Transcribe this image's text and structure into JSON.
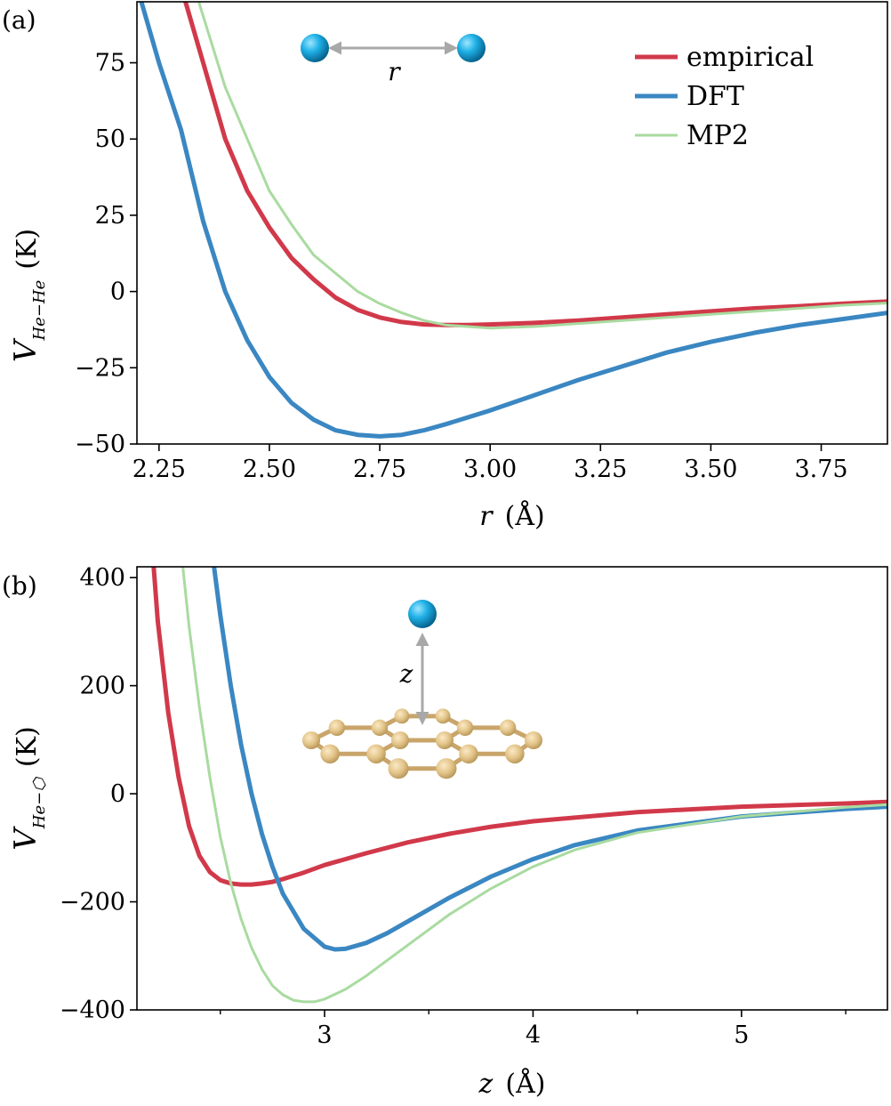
{
  "chart_data": [
    {
      "panel": "(a)",
      "type": "line",
      "xlabel_var": "r",
      "xlabel_unit": "(Å)",
      "ylabel_var": "V",
      "ylabel_sub": "He−He",
      "ylabel_unit": "(K)",
      "xlim": [
        2.2,
        3.9
      ],
      "ylim": [
        -50,
        95
      ],
      "xticks": [
        2.25,
        2.5,
        2.75,
        3.0,
        3.25,
        3.5,
        3.75
      ],
      "xtick_labels": [
        "2.25",
        "2.50",
        "2.75",
        "3.00",
        "3.25",
        "3.50",
        "3.75"
      ],
      "yticks": [
        -50,
        -25,
        0,
        25,
        50,
        75
      ],
      "ytick_labels": [
        "−50",
        "−25",
        "0",
        "25",
        "50",
        "75"
      ],
      "legend_position": "top-right",
      "inset": {
        "type": "dimer",
        "label": "r"
      },
      "series": [
        {
          "name": "empirical",
          "color": "#d1394a",
          "width": 5,
          "x": [
            2.31,
            2.35,
            2.4,
            2.45,
            2.5,
            2.55,
            2.6,
            2.65,
            2.7,
            2.75,
            2.8,
            2.85,
            2.9,
            2.95,
            3.0,
            3.1,
            3.2,
            3.3,
            3.4,
            3.5,
            3.6,
            3.7,
            3.8,
            3.9
          ],
          "y": [
            95,
            75,
            50,
            33,
            21,
            11,
            4,
            -2,
            -6,
            -8.5,
            -10,
            -10.8,
            -11,
            -11,
            -10.8,
            -10.3,
            -9.5,
            -8.5,
            -7.5,
            -6.5,
            -5.5,
            -4.8,
            -4,
            -3.3
          ]
        },
        {
          "name": "DFT",
          "color": "#3a87c2",
          "width": 5,
          "x": [
            2.21,
            2.25,
            2.3,
            2.35,
            2.4,
            2.45,
            2.5,
            2.55,
            2.6,
            2.65,
            2.7,
            2.75,
            2.8,
            2.85,
            2.9,
            3.0,
            3.1,
            3.2,
            3.3,
            3.4,
            3.5,
            3.6,
            3.7,
            3.8,
            3.9
          ],
          "y": [
            95,
            75,
            53,
            23,
            0,
            -16,
            -28,
            -36.5,
            -42,
            -45.5,
            -47,
            -47.5,
            -47,
            -45.5,
            -43.5,
            -39,
            -34,
            -29,
            -24.5,
            -20,
            -16.5,
            -13.5,
            -11,
            -9,
            -7
          ]
        },
        {
          "name": "MP2",
          "color": "#a9dba0",
          "width": 3,
          "x": [
            2.34,
            2.4,
            2.45,
            2.5,
            2.55,
            2.6,
            2.65,
            2.7,
            2.75,
            2.8,
            2.85,
            2.9,
            3.0,
            3.1,
            3.2,
            3.3,
            3.4,
            3.5,
            3.6,
            3.7,
            3.8,
            3.9
          ],
          "y": [
            95,
            67,
            50,
            33,
            22,
            12,
            6,
            0,
            -4,
            -7,
            -9.5,
            -11,
            -12,
            -11.5,
            -10.5,
            -9.5,
            -8.5,
            -7.5,
            -6.5,
            -5.5,
            -4.5,
            -3.8
          ]
        }
      ]
    },
    {
      "panel": "(b)",
      "type": "line",
      "xlabel_var": "z",
      "xlabel_unit": "(Å)",
      "ylabel_var": "V",
      "ylabel_sub": "He−⬡",
      "ylabel_unit": "(K)",
      "xlim": [
        2.1,
        5.7
      ],
      "ylim": [
        -400,
        420
      ],
      "xticks": [
        3,
        4,
        5
      ],
      "xtick_labels": [
        "3",
        "4",
        "5"
      ],
      "minor_xticks": [
        2.5,
        3.5,
        4.5,
        5.5
      ],
      "yticks": [
        -400,
        -200,
        0,
        200,
        400
      ],
      "ytick_labels": [
        "−400",
        "−200",
        "0",
        "200",
        "400"
      ],
      "inset": {
        "type": "graphene-adsorbate",
        "label": "z"
      },
      "series": [
        {
          "name": "empirical",
          "color": "#d1394a",
          "width": 5,
          "x": [
            2.18,
            2.2,
            2.25,
            2.3,
            2.35,
            2.4,
            2.45,
            2.5,
            2.55,
            2.6,
            2.65,
            2.7,
            2.75,
            2.8,
            2.9,
            3.0,
            3.2,
            3.4,
            3.6,
            3.8,
            4.0,
            4.5,
            5.0,
            5.5,
            5.7
          ],
          "y": [
            420,
            320,
            150,
            30,
            -60,
            -115,
            -145,
            -160,
            -166,
            -168,
            -168,
            -166,
            -163,
            -158,
            -146,
            -132,
            -110,
            -90,
            -74,
            -61,
            -51,
            -34,
            -24,
            -18,
            -15
          ]
        },
        {
          "name": "DFT",
          "color": "#3a87c2",
          "width": 5,
          "x": [
            2.47,
            2.5,
            2.55,
            2.6,
            2.65,
            2.7,
            2.75,
            2.8,
            2.9,
            3.0,
            3.05,
            3.1,
            3.2,
            3.3,
            3.4,
            3.6,
            3.8,
            4.0,
            4.2,
            4.5,
            5.0,
            5.5,
            5.7
          ],
          "y": [
            420,
            330,
            200,
            90,
            0,
            -75,
            -135,
            -185,
            -250,
            -283,
            -288,
            -287,
            -276,
            -258,
            -236,
            -192,
            -153,
            -121,
            -95,
            -68,
            -42,
            -28,
            -24
          ]
        },
        {
          "name": "MP2",
          "color": "#a9dba0",
          "width": 3,
          "x": [
            2.32,
            2.35,
            2.4,
            2.45,
            2.5,
            2.55,
            2.6,
            2.65,
            2.7,
            2.75,
            2.8,
            2.85,
            2.9,
            2.95,
            3.0,
            3.1,
            3.2,
            3.4,
            3.6,
            3.8,
            4.0,
            4.2,
            4.5,
            5.0,
            5.5,
            5.7
          ],
          "y": [
            420,
            310,
            160,
            30,
            -80,
            -165,
            -232,
            -285,
            -325,
            -355,
            -372,
            -382,
            -385,
            -385,
            -380,
            -362,
            -337,
            -280,
            -223,
            -175,
            -135,
            -104,
            -72,
            -42,
            -25,
            -20
          ]
        }
      ]
    }
  ]
}
